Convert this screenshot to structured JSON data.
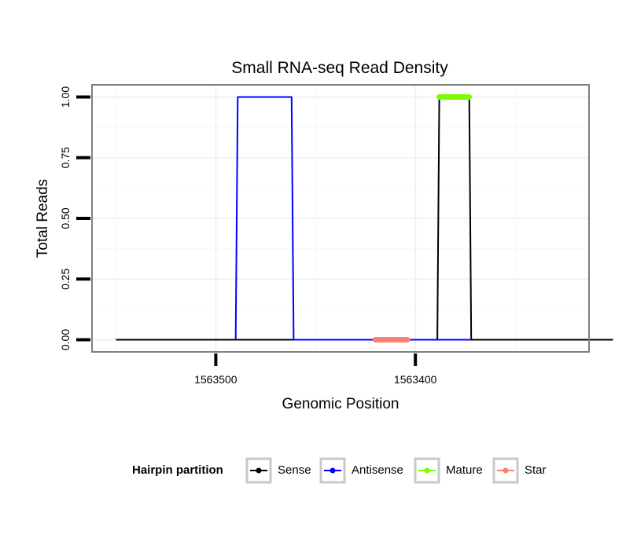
{
  "chart_data": {
    "type": "line",
    "title": "Small RNA-seq Read Density",
    "xlabel": "Genomic Position",
    "ylabel": "Total Reads",
    "x_reversed": true,
    "xlim": [
      1563562,
      1563313
    ],
    "ylim": [
      -0.05,
      1.05
    ],
    "grid": true,
    "x_ticks": [
      1563500,
      1563400
    ],
    "x_tick_labels": [
      "1563500",
      "1563400"
    ],
    "y_ticks": [
      0.0,
      0.25,
      0.5,
      0.75,
      1.0
    ],
    "y_tick_labels": [
      "0.00",
      "0.25",
      "0.50",
      "0.75",
      "1.00"
    ],
    "series": [
      {
        "name": "Sense",
        "color": "#000000",
        "x": [
          1563550,
          1563389,
          1563388,
          1563373,
          1563372,
          1563301
        ],
        "y": [
          0,
          0,
          1,
          1,
          0,
          0
        ]
      },
      {
        "name": "Antisense",
        "color": "#0000ff",
        "x": [
          1563490,
          1563489,
          1563462,
          1563461,
          1563389,
          1563372
        ],
        "y": [
          0,
          1,
          1,
          0,
          0,
          0
        ]
      },
      {
        "name": "Mature",
        "color": "#7cfc00",
        "x": [
          1563388,
          1563373
        ],
        "y": [
          1,
          1
        ]
      },
      {
        "name": "Star",
        "color": "#fa8072",
        "x": [
          1563420,
          1563404
        ],
        "y": [
          0,
          0
        ]
      }
    ],
    "legend": {
      "title": "Hairpin partition",
      "position": "bottom",
      "entries": [
        "Sense",
        "Antisense",
        "Mature",
        "Star"
      ]
    }
  }
}
